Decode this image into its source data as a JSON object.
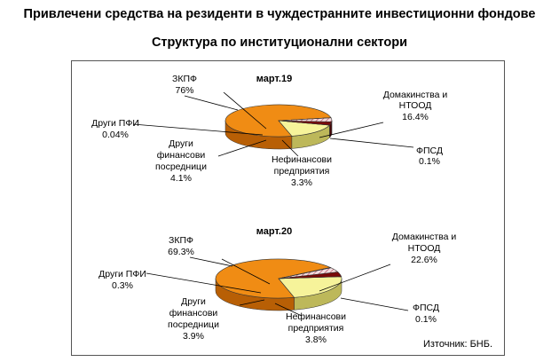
{
  "title": "Привлечени средства на резиденти в чуждестранните инвестиционни фондове",
  "subtitle": "Структура по институционални сектори",
  "source": "Източник: БНБ.",
  "colors": {
    "zkpf": "#F08C14",
    "households": "#F6F39A",
    "fpsd": "#9CB6E8",
    "nonfin": "#7A0A0A",
    "other_fin": "#E7C3C8",
    "other_pfi": "#FFFFFF"
  },
  "chart_data": [
    {
      "type": "pie",
      "title": "март.19",
      "slices": [
        {
          "key": "zkpf",
          "name": "ЗКПФ",
          "value": 76,
          "value_label": "76%"
        },
        {
          "key": "households",
          "name": "Домакинства и НТООД",
          "value": 16.4,
          "value_label": "16.4%"
        },
        {
          "key": "fpsd",
          "name": "ФПСД",
          "value": 0.1,
          "value_label": "0.1%"
        },
        {
          "key": "nonfin",
          "name": "Нефинансови предприятия",
          "value": 3.3,
          "value_label": "3.3%"
        },
        {
          "key": "other_fin",
          "name": "Други финансови посредници",
          "value": 4.1,
          "value_label": "4.1%"
        },
        {
          "key": "other_pfi",
          "name": "Други ПФИ",
          "value": 0.04,
          "value_label": "0.04%"
        }
      ]
    },
    {
      "type": "pie",
      "title": "март.20",
      "slices": [
        {
          "key": "zkpf",
          "name": "ЗКПФ",
          "value": 69.3,
          "value_label": "69.3%"
        },
        {
          "key": "households",
          "name": "Домакинства и НТООД",
          "value": 22.6,
          "value_label": "22.6%"
        },
        {
          "key": "fpsd",
          "name": "ФПСД",
          "value": 0.1,
          "value_label": "0.1%"
        },
        {
          "key": "nonfin",
          "name": "Нефинансови предприятия",
          "value": 3.8,
          "value_label": "3.8%"
        },
        {
          "key": "other_fin",
          "name": "Други финансови посредници",
          "value": 3.9,
          "value_label": "3.9%"
        },
        {
          "key": "other_pfi",
          "name": "Други ПФИ",
          "value": 0.3,
          "value_label": "0.3%"
        }
      ]
    }
  ]
}
